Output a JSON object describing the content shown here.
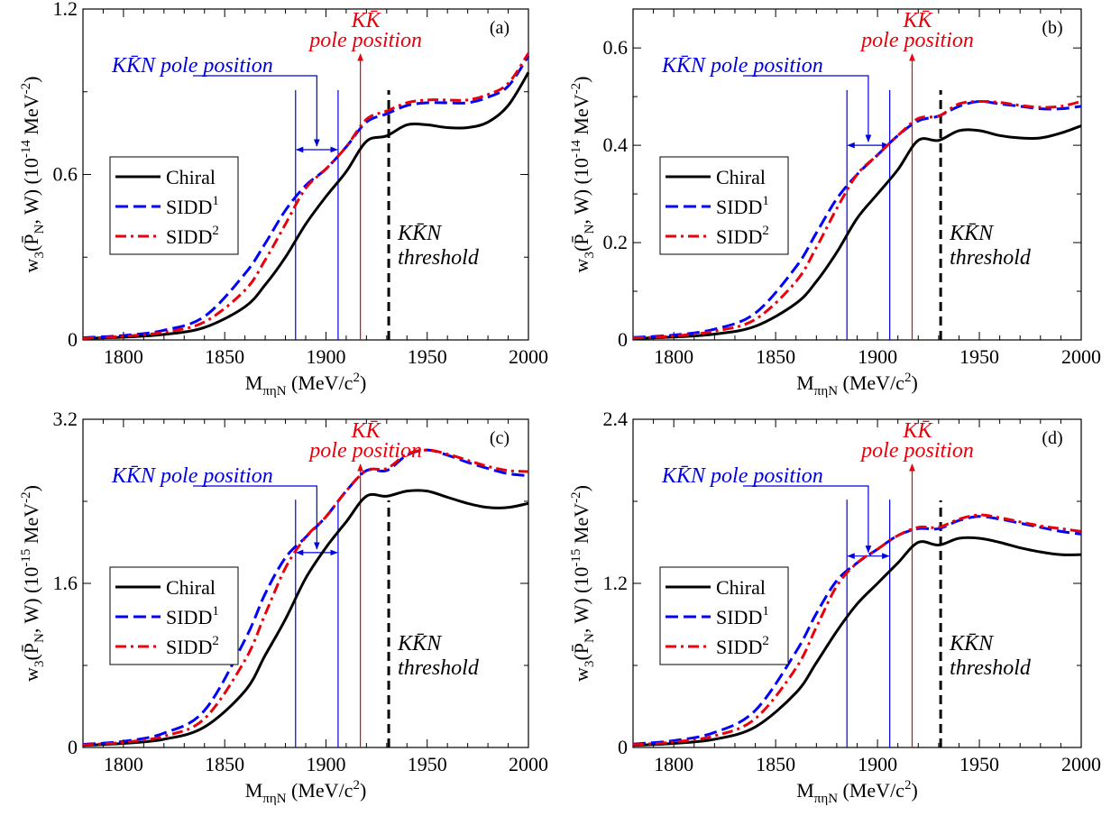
{
  "colors": {
    "chiral": "#000000",
    "sidd1": "#0000ff",
    "sidd2": "#e8000b",
    "annotation_blue": "#0000e0",
    "annotation_red": "#e8000b"
  },
  "legend": {
    "chiral": "Chiral",
    "sidd1": "SIDD",
    "sidd1_sup": "1",
    "sidd2": "SIDD",
    "sidd2_sup": "2"
  },
  "annotations": {
    "kkbar_line1": "KK̄",
    "kkbar_line2": "pole position",
    "kkbarn_pole": "KK̄N pole position",
    "threshold_line1": "KK̄N",
    "threshold_line2": "threshold"
  },
  "xaxis": {
    "label_main": "M",
    "label_sub": "πηN",
    "label_units": " (MeV/c",
    "label_units_sup": "2",
    "label_units_close": ")"
  },
  "chart_data": [
    {
      "type": "line",
      "panel": "(a)",
      "ylabel_prefix": "w",
      "ylabel_sub": "3",
      "ylabel_mid": "(P̄",
      "ylabel_sub2": "N",
      "ylabel_rest": ", W) (10",
      "ylabel_exp": "-14",
      "ylabel_units": " MeV",
      "ylabel_units_exp": "-2",
      "ylabel_close": ")",
      "xlim": [
        1780,
        2000
      ],
      "ylim": [
        0,
        1.2
      ],
      "xticks": [
        1800,
        1850,
        1900,
        1950,
        2000
      ],
      "yticks": [
        0,
        0.6,
        1.2
      ],
      "ytick_labels": [
        "0",
        "0.6",
        "1.2"
      ],
      "vlines": {
        "kkbarn_pole": [
          1885,
          1906
        ],
        "kkbar_pole": 1917,
        "kkbarn_threshold": 1931
      },
      "arrow_y": 0.69,
      "series": [
        {
          "name": "Chiral",
          "style": "solid",
          "x": [
            1780,
            1800,
            1820,
            1840,
            1860,
            1870,
            1880,
            1890,
            1900,
            1910,
            1920,
            1930,
            1940,
            1950,
            1960,
            1970,
            1980,
            1990,
            2000
          ],
          "y": [
            0.006,
            0.01,
            0.02,
            0.045,
            0.12,
            0.2,
            0.3,
            0.42,
            0.52,
            0.61,
            0.72,
            0.74,
            0.78,
            0.78,
            0.77,
            0.77,
            0.79,
            0.85,
            0.97
          ]
        },
        {
          "name": "SIDD1",
          "style": "dashed",
          "x": [
            1780,
            1800,
            1820,
            1840,
            1860,
            1870,
            1880,
            1890,
            1900,
            1910,
            1920,
            1930,
            1940,
            1950,
            1960,
            1970,
            1980,
            1990,
            2000
          ],
          "y": [
            0.008,
            0.016,
            0.035,
            0.085,
            0.24,
            0.35,
            0.47,
            0.56,
            0.62,
            0.7,
            0.79,
            0.82,
            0.85,
            0.86,
            0.86,
            0.86,
            0.88,
            0.92,
            1.03
          ]
        },
        {
          "name": "SIDD2",
          "style": "dashdot",
          "x": [
            1780,
            1800,
            1820,
            1840,
            1860,
            1870,
            1880,
            1890,
            1900,
            1910,
            1920,
            1930,
            1940,
            1950,
            1960,
            1970,
            1980,
            1990,
            2000
          ],
          "y": [
            0.006,
            0.013,
            0.028,
            0.065,
            0.18,
            0.29,
            0.42,
            0.55,
            0.62,
            0.7,
            0.8,
            0.83,
            0.86,
            0.87,
            0.87,
            0.87,
            0.89,
            0.93,
            1.04
          ]
        }
      ]
    },
    {
      "type": "line",
      "panel": "(b)",
      "ylabel_prefix": "w",
      "ylabel_sub": "3",
      "ylabel_mid": "(P̄",
      "ylabel_sub2": "N",
      "ylabel_rest": ", W) (10",
      "ylabel_exp": "-14",
      "ylabel_units": " MeV",
      "ylabel_units_exp": "-2",
      "ylabel_close": ")",
      "xlim": [
        1780,
        2000
      ],
      "ylim": [
        0,
        0.68
      ],
      "xticks": [
        1800,
        1850,
        1900,
        1950,
        2000
      ],
      "yticks": [
        0,
        0.2,
        0.4,
        0.6
      ],
      "ytick_labels": [
        "0",
        "0.2",
        "0.4",
        "0.6"
      ],
      "vlines": {
        "kkbarn_pole": [
          1885,
          1906
        ],
        "kkbar_pole": 1917,
        "kkbarn_threshold": 1931
      },
      "arrow_y": 0.4,
      "series": [
        {
          "name": "Chiral",
          "style": "solid",
          "x": [
            1780,
            1800,
            1820,
            1840,
            1860,
            1870,
            1880,
            1890,
            1900,
            1910,
            1920,
            1930,
            1940,
            1950,
            1960,
            1970,
            1980,
            1990,
            2000
          ],
          "y": [
            0.003,
            0.006,
            0.012,
            0.028,
            0.075,
            0.12,
            0.18,
            0.25,
            0.3,
            0.35,
            0.41,
            0.41,
            0.43,
            0.43,
            0.42,
            0.415,
            0.415,
            0.425,
            0.44
          ]
        },
        {
          "name": "SIDD1",
          "style": "dashed",
          "x": [
            1780,
            1800,
            1820,
            1840,
            1860,
            1870,
            1880,
            1890,
            1900,
            1910,
            1920,
            1930,
            1940,
            1950,
            1960,
            1970,
            1980,
            1990,
            2000
          ],
          "y": [
            0.005,
            0.01,
            0.022,
            0.055,
            0.15,
            0.22,
            0.29,
            0.34,
            0.38,
            0.42,
            0.45,
            0.46,
            0.48,
            0.49,
            0.485,
            0.48,
            0.475,
            0.475,
            0.48
          ]
        },
        {
          "name": "SIDD2",
          "style": "dashdot",
          "x": [
            1780,
            1800,
            1820,
            1840,
            1860,
            1870,
            1880,
            1890,
            1900,
            1910,
            1920,
            1930,
            1940,
            1950,
            1960,
            1970,
            1980,
            1990,
            2000
          ],
          "y": [
            0.004,
            0.008,
            0.018,
            0.042,
            0.12,
            0.19,
            0.27,
            0.34,
            0.38,
            0.42,
            0.455,
            0.46,
            0.485,
            0.49,
            0.488,
            0.482,
            0.478,
            0.48,
            0.49
          ]
        }
      ]
    },
    {
      "type": "line",
      "panel": "(c)",
      "ylabel_prefix": "w",
      "ylabel_sub": "3",
      "ylabel_mid": "(P̄",
      "ylabel_sub2": "N",
      "ylabel_rest": ", W) (10",
      "ylabel_exp": "-15",
      "ylabel_units": " MeV",
      "ylabel_units_exp": "-2",
      "ylabel_close": ")",
      "xlim": [
        1780,
        2000
      ],
      "ylim": [
        0,
        3.2
      ],
      "xticks": [
        1800,
        1850,
        1900,
        1950,
        2000
      ],
      "yticks": [
        0,
        1.6,
        3.2
      ],
      "ytick_labels": [
        "0",
        "1.6",
        "3.2"
      ],
      "vlines": {
        "kkbarn_pole": [
          1885,
          1906
        ],
        "kkbar_pole": 1917,
        "kkbarn_threshold": 1931
      },
      "arrow_y": 1.9,
      "series": [
        {
          "name": "Chiral",
          "style": "solid",
          "x": [
            1780,
            1800,
            1820,
            1840,
            1860,
            1870,
            1880,
            1890,
            1900,
            1910,
            1920,
            1930,
            1940,
            1950,
            1960,
            1970,
            1980,
            1990,
            2000
          ],
          "y": [
            0.02,
            0.04,
            0.08,
            0.2,
            0.55,
            0.9,
            1.25,
            1.65,
            1.95,
            2.2,
            2.45,
            2.45,
            2.5,
            2.5,
            2.44,
            2.38,
            2.34,
            2.34,
            2.38
          ]
        },
        {
          "name": "SIDD1",
          "style": "dashed",
          "x": [
            1780,
            1800,
            1820,
            1840,
            1860,
            1870,
            1880,
            1890,
            1900,
            1910,
            1920,
            1930,
            1940,
            1950,
            1960,
            1970,
            1980,
            1990,
            2000
          ],
          "y": [
            0.03,
            0.06,
            0.14,
            0.36,
            1.05,
            1.5,
            1.85,
            2.05,
            2.25,
            2.5,
            2.7,
            2.7,
            2.85,
            2.9,
            2.85,
            2.78,
            2.72,
            2.67,
            2.65
          ]
        },
        {
          "name": "SIDD2",
          "style": "dashdot",
          "x": [
            1780,
            1800,
            1820,
            1840,
            1860,
            1870,
            1880,
            1890,
            1900,
            1910,
            1920,
            1930,
            1940,
            1950,
            1960,
            1970,
            1980,
            1990,
            2000
          ],
          "y": [
            0.025,
            0.05,
            0.11,
            0.28,
            0.85,
            1.3,
            1.75,
            2.05,
            2.25,
            2.5,
            2.7,
            2.72,
            2.86,
            2.9,
            2.86,
            2.8,
            2.74,
            2.7,
            2.69
          ]
        }
      ]
    },
    {
      "type": "line",
      "panel": "(d)",
      "ylabel_prefix": "w",
      "ylabel_sub": "3",
      "ylabel_mid": "(P̄",
      "ylabel_sub2": "N",
      "ylabel_rest": ", W) (10",
      "ylabel_exp": "-15",
      "ylabel_units": " MeV",
      "ylabel_units_exp": "-2",
      "ylabel_close": ")",
      "xlim": [
        1780,
        2000
      ],
      "ylim": [
        0,
        2.4
      ],
      "xticks": [
        1800,
        1850,
        1900,
        1950,
        2000
      ],
      "yticks": [
        0,
        1.2,
        2.4
      ],
      "ytick_labels": [
        "0",
        "1.2",
        "2.4"
      ],
      "vlines": {
        "kkbarn_pole": [
          1885,
          1906
        ],
        "kkbar_pole": 1917,
        "kkbarn_threshold": 1931
      },
      "arrow_y": 1.4,
      "series": [
        {
          "name": "Chiral",
          "style": "solid",
          "x": [
            1780,
            1800,
            1820,
            1840,
            1860,
            1870,
            1880,
            1890,
            1900,
            1910,
            1920,
            1930,
            1940,
            1950,
            1960,
            1970,
            1980,
            1990,
            2000
          ],
          "y": [
            0.015,
            0.03,
            0.06,
            0.15,
            0.4,
            0.62,
            0.85,
            1.05,
            1.2,
            1.35,
            1.5,
            1.48,
            1.53,
            1.53,
            1.5,
            1.46,
            1.43,
            1.41,
            1.41
          ]
        },
        {
          "name": "SIDD1",
          "style": "dashed",
          "x": [
            1780,
            1800,
            1820,
            1840,
            1860,
            1870,
            1880,
            1890,
            1900,
            1910,
            1920,
            1930,
            1940,
            1950,
            1960,
            1970,
            1980,
            1990,
            2000
          ],
          "y": [
            0.025,
            0.05,
            0.11,
            0.27,
            0.7,
            0.98,
            1.22,
            1.35,
            1.45,
            1.55,
            1.6,
            1.6,
            1.66,
            1.69,
            1.67,
            1.64,
            1.61,
            1.58,
            1.56
          ]
        },
        {
          "name": "SIDD2",
          "style": "dashdot",
          "x": [
            1780,
            1800,
            1820,
            1840,
            1860,
            1870,
            1880,
            1890,
            1900,
            1910,
            1920,
            1930,
            1940,
            1950,
            1960,
            1970,
            1980,
            1990,
            2000
          ],
          "y": [
            0.02,
            0.04,
            0.085,
            0.21,
            0.58,
            0.88,
            1.18,
            1.35,
            1.45,
            1.55,
            1.61,
            1.61,
            1.67,
            1.7,
            1.68,
            1.65,
            1.62,
            1.6,
            1.58
          ]
        }
      ]
    }
  ]
}
